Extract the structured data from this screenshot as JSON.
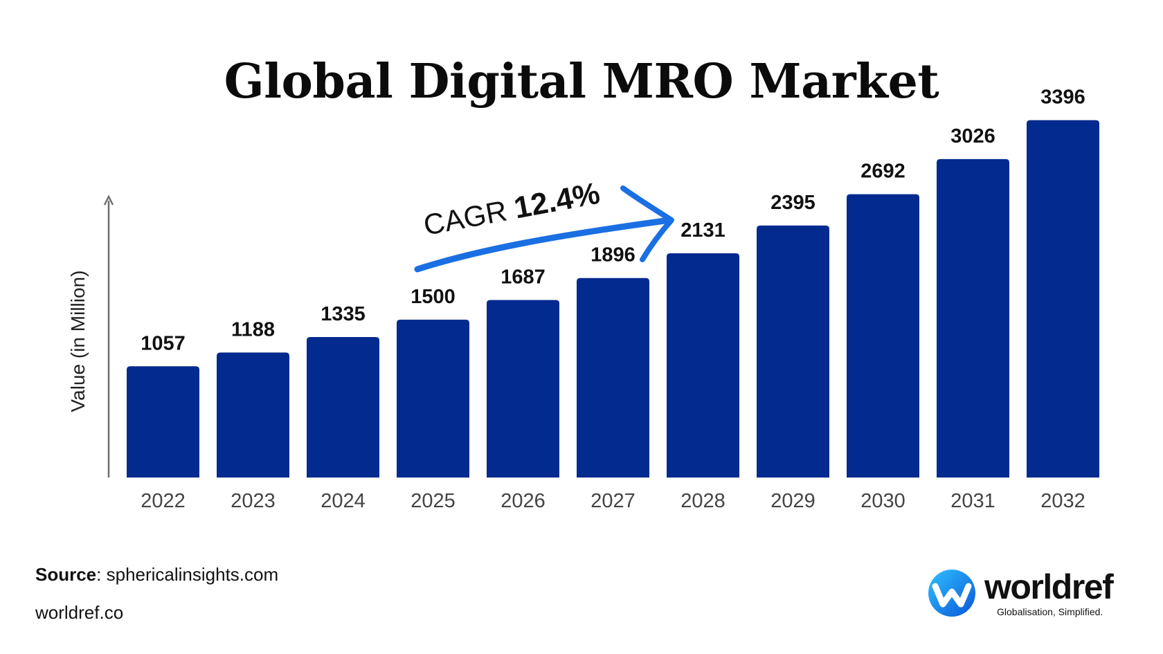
{
  "chart_data": {
    "type": "bar",
    "title": "Global Digital MRO Market",
    "ylabel": "Value (in Million)",
    "xlabel": "",
    "categories": [
      "2022",
      "2023",
      "2024",
      "2025",
      "2026",
      "2027",
      "2028",
      "2029",
      "2030",
      "2031",
      "2032"
    ],
    "values": [
      1057,
      1188,
      1335,
      1500,
      1687,
      1896,
      2131,
      2395,
      2692,
      3026,
      3396
    ],
    "value_labels": [
      "1057",
      "1188",
      "1335",
      "1500",
      "1687",
      "1896",
      "2131",
      "2395",
      "2692",
      "3026",
      "3396"
    ],
    "grid": false,
    "legend": "none",
    "bar_color": "#022a8f",
    "annotation": {
      "prefix": "CAGR",
      "value": "12.4%",
      "arrow_color": "#1a6fe3"
    }
  },
  "footer": {
    "source_label": "Source",
    "source_text": ": sphericalinsights.com",
    "website": "worldref.co"
  },
  "logo": {
    "name": "worldref",
    "tagline": "Globalisation, Simplified.",
    "icon": "worldref-logo-icon"
  }
}
